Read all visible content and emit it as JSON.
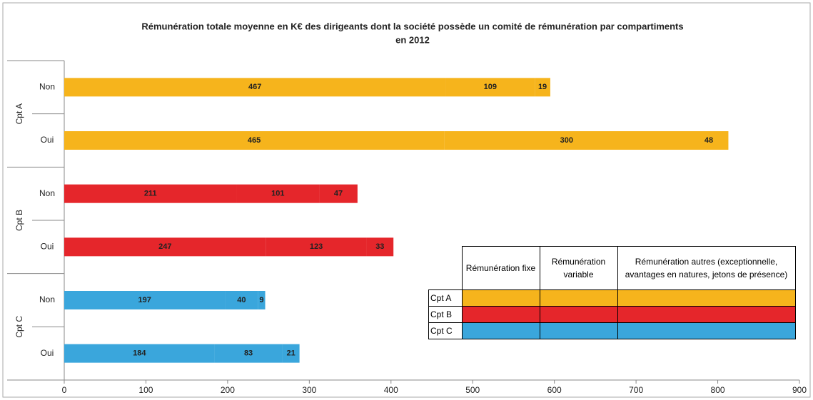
{
  "chart_data": {
    "type": "bar",
    "orientation": "horizontal",
    "stacked": true,
    "title": [
      "Rémunération totale moyenne en K€ des dirigeants dont la société possède un comité de rémunération par compartiments",
      "en 2012"
    ],
    "groups": [
      {
        "name": "Cpt A",
        "color": "#f6b41c"
      },
      {
        "name": "Cpt B",
        "color": "#e5262b"
      },
      {
        "name": "Cpt C",
        "color": "#3aa6dc"
      }
    ],
    "categories": [
      "Non",
      "Oui",
      "Non",
      "Oui",
      "Non",
      "Oui"
    ],
    "series": [
      {
        "name": "Rémunération fixe",
        "values": [
          467,
          465,
          211,
          247,
          197,
          184
        ]
      },
      {
        "name": "Rémunération variable",
        "values": [
          109,
          300,
          101,
          123,
          40,
          83
        ]
      },
      {
        "name": "Rémunération autres (exceptionnelle, avantages en natures, jetons de présence)",
        "values": [
          19,
          48,
          47,
          33,
          9,
          21
        ]
      }
    ],
    "xlim": [
      0,
      900
    ],
    "xticks": [
      0,
      100,
      200,
      300,
      400,
      500,
      600,
      700,
      800,
      900
    ],
    "grid": false
  }
}
